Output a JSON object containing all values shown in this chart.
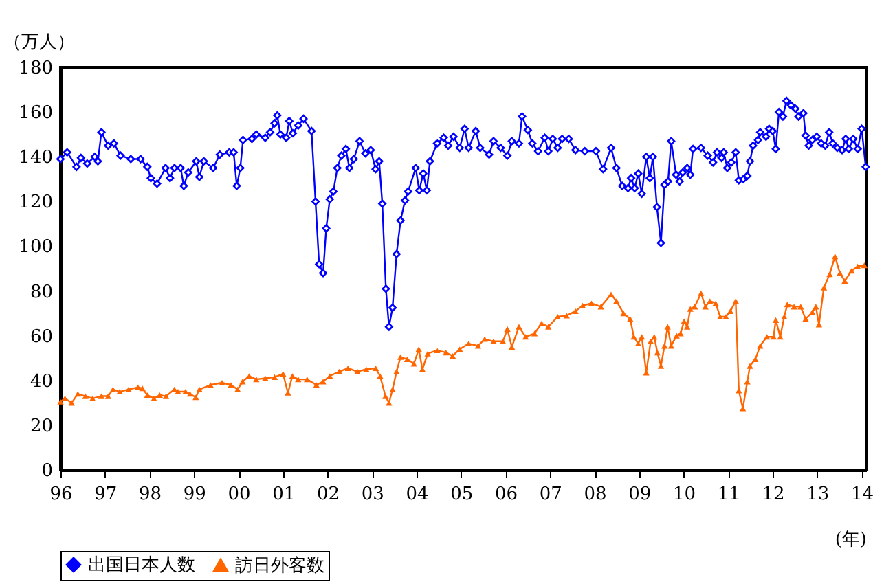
{
  "chart_data": {
    "type": "line",
    "xlabel": "(年)",
    "ylabel": "（万人）",
    "xlim": [
      1996,
      2014.1
    ],
    "ylim": [
      0,
      180
    ],
    "yticks": [
      0,
      20,
      40,
      60,
      80,
      100,
      120,
      140,
      160,
      180
    ],
    "xticks": [
      {
        "value": 1996,
        "label": "96"
      },
      {
        "value": 1997,
        "label": "97"
      },
      {
        "value": 1998,
        "label": "98"
      },
      {
        "value": 1999,
        "label": "99"
      },
      {
        "value": 2000,
        "label": "00"
      },
      {
        "value": 2001,
        "label": "01"
      },
      {
        "value": 2002,
        "label": "02"
      },
      {
        "value": 2003,
        "label": "03"
      },
      {
        "value": 2004,
        "label": "04"
      },
      {
        "value": 2005,
        "label": "05"
      },
      {
        "value": 2006,
        "label": "06"
      },
      {
        "value": 2007,
        "label": "07"
      },
      {
        "value": 2008,
        "label": "08"
      },
      {
        "value": 2009,
        "label": "09"
      },
      {
        "value": 2010,
        "label": "10"
      },
      {
        "value": 2011,
        "label": "11"
      },
      {
        "value": 2012,
        "label": "12"
      },
      {
        "value": 2013,
        "label": "13"
      },
      {
        "value": 2014,
        "label": "14"
      }
    ],
    "grid": false,
    "legend": "bottom",
    "line_style": "solid",
    "series": [
      {
        "name": "出国日本人数",
        "color": "#0000ff",
        "marker": "diamond",
        "x": [
          1996.0,
          1996.15,
          1996.36,
          1996.46,
          1996.6,
          1996.77,
          1996.84,
          1996.92,
          1997.07,
          1997.2,
          1997.35,
          1997.58,
          1997.8,
          1997.95,
          1998.03,
          1998.17,
          1998.36,
          1998.46,
          1998.56,
          1998.7,
          1998.77,
          1998.87,
          1999.05,
          1999.12,
          1999.22,
          1999.43,
          1999.58,
          1999.79,
          1999.89,
          1999.96,
          2000.04,
          2000.1,
          2000.3,
          2000.4,
          2000.6,
          2000.71,
          2000.81,
          2000.87,
          2000.94,
          2001.07,
          2001.14,
          2001.22,
          2001.34,
          2001.46,
          2001.64,
          2001.73,
          2001.81,
          2001.9,
          2001.97,
          2002.05,
          2002.13,
          2002.22,
          2002.31,
          2002.41,
          2002.49,
          2002.59,
          2002.72,
          2002.85,
          2002.97,
          2003.08,
          2003.16,
          2003.23,
          2003.31,
          2003.38,
          2003.46,
          2003.55,
          2003.64,
          2003.74,
          2003.81,
          2003.98,
          2004.06,
          2004.15,
          2004.23,
          2004.3,
          2004.46,
          2004.61,
          2004.71,
          2004.83,
          2004.97,
          2005.08,
          2005.17,
          2005.33,
          2005.43,
          2005.63,
          2005.73,
          2005.89,
          2006.04,
          2006.14,
          2006.3,
          2006.37,
          2006.5,
          2006.6,
          2006.73,
          2006.88,
          2006.96,
          2007.06,
          2007.17,
          2007.27,
          2007.42,
          2007.57,
          2007.78,
          2008.03,
          2008.19,
          2008.37,
          2008.49,
          2008.62,
          2008.75,
          2008.82,
          2008.9,
          2008.98,
          2009.06,
          2009.16,
          2009.24,
          2009.31,
          2009.4,
          2009.49,
          2009.57,
          2009.65,
          2009.72,
          2009.83,
          2009.91,
          2009.98,
          2010.08,
          2010.15,
          2010.21,
          2010.39,
          2010.54,
          2010.66,
          2010.75,
          2010.85,
          2010.9,
          2010.98,
          2011.07,
          2011.17,
          2011.24,
          2011.34,
          2011.43,
          2011.49,
          2011.56,
          2011.67,
          2011.72,
          2011.85,
          2011.92,
          2012.0,
          2012.07,
          2012.14,
          2012.23,
          2012.31,
          2012.41,
          2012.51,
          2012.58,
          2012.69,
          2012.74,
          2012.81,
          2012.89,
          2012.99,
          2013.09,
          2013.18,
          2013.27,
          2013.35,
          2013.45,
          2013.56,
          2013.64,
          2013.71,
          2013.81,
          2013.91,
          2014.0,
          2014.09
        ],
        "values": [
          139,
          142,
          135.5,
          139.5,
          137,
          140,
          138,
          151,
          145,
          146,
          140.5,
          139,
          139,
          135.5,
          130.5,
          128,
          135,
          130.5,
          135,
          135,
          127,
          133,
          138,
          131,
          138,
          135,
          141,
          142,
          142,
          127,
          135,
          147.5,
          148,
          150,
          148.5,
          151,
          155,
          158.5,
          150,
          148.5,
          156,
          150.5,
          154,
          157,
          151.5,
          120,
          92,
          88,
          108,
          121,
          124.5,
          135,
          140.5,
          143.5,
          135,
          139,
          147,
          141.5,
          143,
          134.5,
          138,
          119,
          81,
          64,
          72.5,
          96.5,
          111.5,
          120.5,
          124.5,
          135,
          125,
          132.5,
          125,
          138,
          146,
          148.5,
          145,
          149,
          144,
          152.5,
          144,
          151.5,
          144,
          141,
          147,
          144,
          140.5,
          147,
          146,
          158,
          152,
          146,
          142.5,
          148.5,
          142.5,
          148,
          144,
          148,
          148,
          143,
          142.5,
          142.5,
          134.5,
          144,
          135,
          127,
          126,
          130.5,
          126,
          132.5,
          123.5,
          140,
          130.5,
          140,
          117.5,
          101.5,
          127.5,
          129,
          147,
          132,
          129,
          133,
          135,
          132,
          143.5,
          144,
          140.5,
          137.5,
          142,
          139.5,
          142,
          135,
          137.5,
          142,
          129.5,
          130,
          131.5,
          138,
          145,
          147.5,
          151,
          149,
          152.5,
          151.5,
          143.5,
          160,
          158,
          165,
          163,
          161.5,
          158,
          159.5,
          149.5,
          145,
          147.5,
          149,
          146,
          145,
          151,
          146,
          144,
          143,
          148,
          143.5,
          148,
          143.5,
          152.5,
          135.5
        ]
      },
      {
        "name": "訪日外客数",
        "color": "#ff6600",
        "marker": "triangle",
        "x": [
          1996.0,
          1996.1,
          1996.25,
          1996.39,
          1996.56,
          1996.72,
          1996.92,
          1997.07,
          1997.18,
          1997.33,
          1997.53,
          1997.74,
          1997.84,
          1997.95,
          1998.1,
          1998.23,
          1998.37,
          1998.56,
          1998.64,
          1998.81,
          1998.91,
          1999.04,
          1999.12,
          1999.37,
          1999.63,
          1999.83,
          1999.98,
          2000.09,
          2000.24,
          2000.4,
          2000.6,
          2000.81,
          2001.0,
          2001.11,
          2001.21,
          2001.34,
          2001.54,
          2001.75,
          2001.9,
          2002.05,
          2002.26,
          2002.46,
          2002.67,
          2002.87,
          2003.08,
          2003.18,
          2003.3,
          2003.38,
          2003.46,
          2003.55,
          2003.64,
          2003.79,
          2003.94,
          2004.05,
          2004.13,
          2004.25,
          2004.46,
          2004.66,
          2004.81,
          2004.97,
          2005.17,
          2005.38,
          2005.53,
          2005.73,
          2005.94,
          2006.04,
          2006.14,
          2006.3,
          2006.45,
          2006.65,
          2006.81,
          2006.96,
          2007.17,
          2007.37,
          2007.57,
          2007.73,
          2007.93,
          2008.14,
          2008.37,
          2008.49,
          2008.65,
          2008.8,
          2008.88,
          2008.98,
          2009.06,
          2009.16,
          2009.26,
          2009.34,
          2009.41,
          2009.49,
          2009.57,
          2009.64,
          2009.72,
          2009.84,
          2009.93,
          2010.01,
          2010.08,
          2010.15,
          2010.25,
          2010.39,
          2010.49,
          2010.59,
          2010.72,
          2010.82,
          2010.95,
          2011.05,
          2011.17,
          2011.24,
          2011.33,
          2011.43,
          2011.49,
          2011.61,
          2011.72,
          2011.87,
          2012.02,
          2012.07,
          2012.17,
          2012.26,
          2012.33,
          2012.48,
          2012.63,
          2012.74,
          2012.89,
          2012.97,
          2013.04,
          2013.15,
          2013.28,
          2013.4,
          2013.51,
          2013.62,
          2013.77,
          2013.91,
          2014.06
        ],
        "values": [
          30.5,
          32,
          30,
          34,
          33,
          32,
          33,
          33,
          36,
          35,
          36,
          37,
          36.5,
          33.5,
          32,
          33.5,
          33,
          36,
          35,
          35,
          34,
          32.5,
          36,
          38,
          39,
          38,
          36,
          39.5,
          42,
          40.5,
          41,
          41.5,
          43,
          34.5,
          42,
          40.5,
          40.5,
          38,
          39.5,
          42,
          44,
          45.5,
          44,
          45,
          45.5,
          42,
          33,
          30,
          36,
          44,
          50.5,
          49.5,
          47.5,
          54,
          45,
          52,
          53.5,
          52.5,
          51,
          54,
          56.5,
          55.5,
          58.5,
          57.5,
          57.5,
          63,
          55,
          64,
          59.5,
          61,
          65.5,
          64,
          68.5,
          69,
          71,
          73.5,
          74.5,
          73,
          78.5,
          75.5,
          70,
          67.5,
          59.5,
          56.5,
          59.5,
          43.5,
          57.5,
          59.5,
          52.5,
          46.5,
          55.5,
          64,
          55.5,
          60,
          61,
          66.5,
          64,
          72,
          73,
          79,
          73,
          75.5,
          74.5,
          68.5,
          68.5,
          71,
          75.5,
          35.5,
          27.5,
          39.5,
          46.5,
          49.5,
          55.5,
          59.5,
          59.5,
          67,
          59.5,
          68.5,
          74,
          73,
          73,
          67.5,
          70.5,
          73,
          65,
          81.5,
          87.5,
          95.5,
          88,
          84.5,
          89,
          91,
          91.5
        ]
      }
    ]
  }
}
